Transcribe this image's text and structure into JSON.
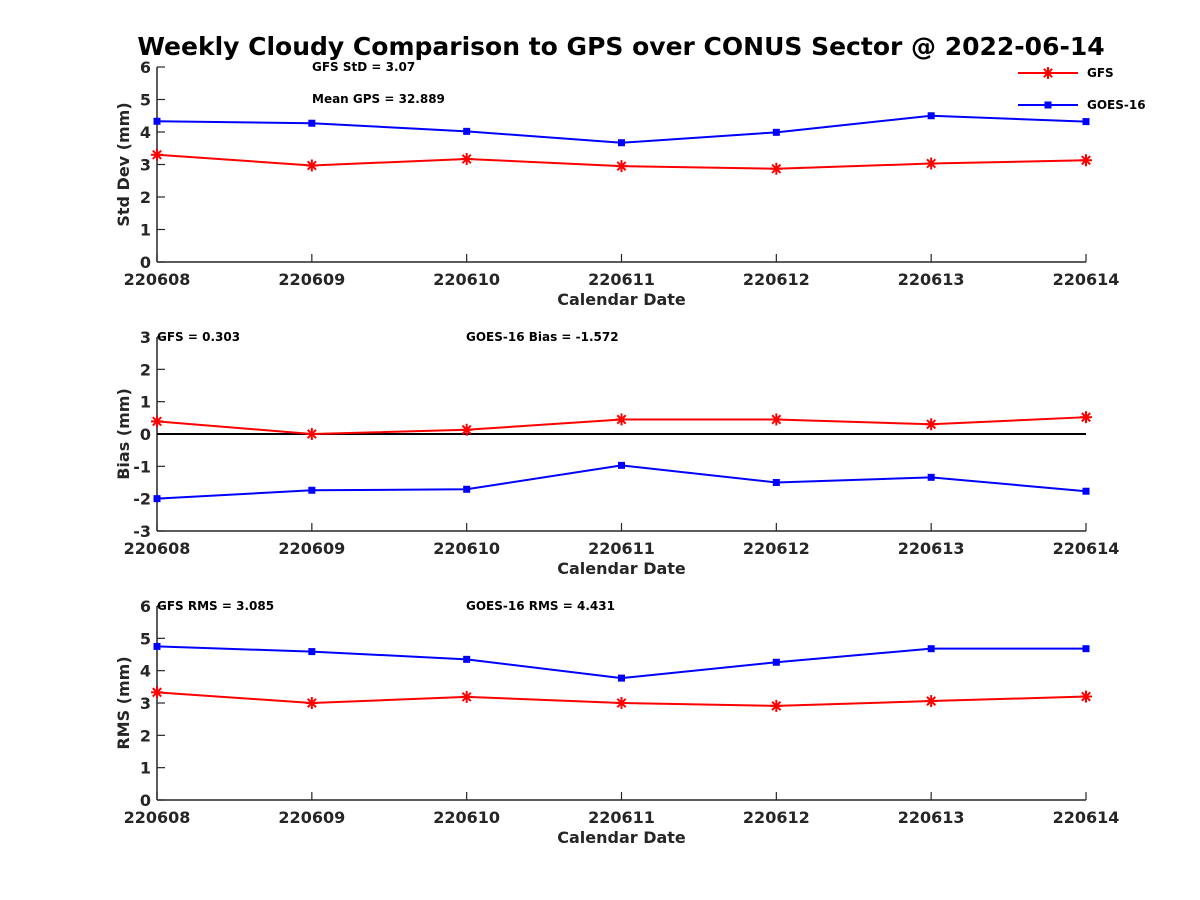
{
  "title": "Weekly Cloudy Comparison to GPS over CONUS Sector @ 2022-06-14",
  "legend": {
    "placement": "top-right",
    "items": [
      {
        "label": "GFS",
        "color": "#ff0000",
        "marker": "asterisk"
      },
      {
        "label": "GOES-16",
        "color": "#0000ff",
        "marker": "square"
      }
    ]
  },
  "chart_data": [
    {
      "type": "line",
      "xlabel": "Calendar Date",
      "ylabel": "Std Dev (mm)",
      "categories": [
        "220608",
        "220609",
        "220610",
        "220611",
        "220612",
        "220613",
        "220614"
      ],
      "ylim": [
        0,
        6
      ],
      "yticks": [
        0,
        1,
        2,
        3,
        4,
        5,
        6
      ],
      "zero_line": false,
      "annotations": [
        "GFS StD = 3.07",
        "Mean GPS = 32.889"
      ],
      "series": [
        {
          "name": "GFS",
          "color": "#ff0000",
          "marker": "asterisk",
          "values": [
            3.3,
            2.97,
            3.17,
            2.95,
            2.87,
            3.03,
            3.13
          ]
        },
        {
          "name": "GOES-16",
          "color": "#0000ff",
          "marker": "square",
          "values": [
            4.33,
            4.27,
            4.02,
            3.67,
            3.99,
            4.5,
            4.32
          ]
        }
      ]
    },
    {
      "type": "line",
      "xlabel": "Calendar Date",
      "ylabel": "Bias (mm)",
      "categories": [
        "220608",
        "220609",
        "220610",
        "220611",
        "220612",
        "220613",
        "220614"
      ],
      "ylim": [
        -3,
        3
      ],
      "yticks": [
        -3,
        -2,
        -1,
        0,
        1,
        2,
        3
      ],
      "zero_line": true,
      "annotations": [
        "GFS = 0.303",
        "GOES-16 Bias  = -1.572"
      ],
      "series": [
        {
          "name": "GFS",
          "color": "#ff0000",
          "marker": "asterisk",
          "values": [
            0.39,
            0.0,
            0.13,
            0.45,
            0.45,
            0.3,
            0.52
          ]
        },
        {
          "name": "GOES-16",
          "color": "#0000ff",
          "marker": "square",
          "values": [
            -2.0,
            -1.74,
            -1.71,
            -0.97,
            -1.5,
            -1.34,
            -1.77
          ]
        }
      ]
    },
    {
      "type": "line",
      "xlabel": "Calendar Date",
      "ylabel": "RMS (mm)",
      "categories": [
        "220608",
        "220609",
        "220610",
        "220611",
        "220612",
        "220613",
        "220614"
      ],
      "ylim": [
        0,
        6
      ],
      "yticks": [
        0,
        1,
        2,
        3,
        4,
        5,
        6
      ],
      "zero_line": false,
      "annotations": [
        "GFS RMS = 3.085",
        "GOES-16 RMS = 4.431"
      ],
      "series": [
        {
          "name": "GFS",
          "color": "#ff0000",
          "marker": "asterisk",
          "values": [
            3.33,
            3.0,
            3.19,
            3.0,
            2.91,
            3.06,
            3.2
          ]
        },
        {
          "name": "GOES-16",
          "color": "#0000ff",
          "marker": "square",
          "values": [
            4.75,
            4.59,
            4.35,
            3.77,
            4.26,
            4.68,
            4.68
          ]
        }
      ]
    }
  ]
}
